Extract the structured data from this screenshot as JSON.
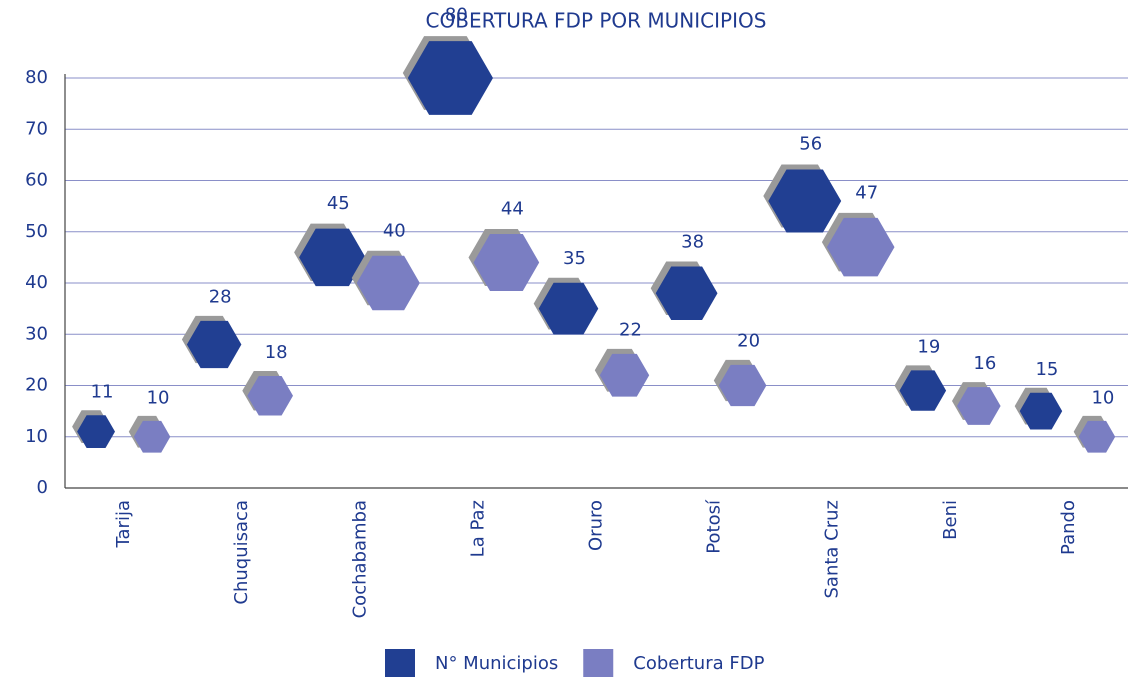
{
  "chart_data": {
    "type": "bubble",
    "title": "COBERTURA FDP POR MUNICIPIOS",
    "categories": [
      "Tarija",
      "Chuquisaca",
      "Cochabamba",
      "La Paz",
      "Oruro",
      "Potosí",
      "Santa Cruz",
      "Beni",
      "Pando"
    ],
    "series": [
      {
        "name": "N° Municipios",
        "color": "#213f92",
        "values": [
          11,
          28,
          45,
          80,
          35,
          38,
          56,
          19,
          15
        ]
      },
      {
        "name": "Cobertura FDP",
        "color": "#7a7ec2",
        "values": [
          10,
          18,
          40,
          44,
          22,
          20,
          47,
          16,
          10
        ]
      }
    ],
    "ylim": [
      0,
      80
    ],
    "yticks": [
      0,
      10,
      20,
      30,
      40,
      50,
      60,
      70,
      80
    ],
    "grid": true,
    "legend": "bottom"
  }
}
